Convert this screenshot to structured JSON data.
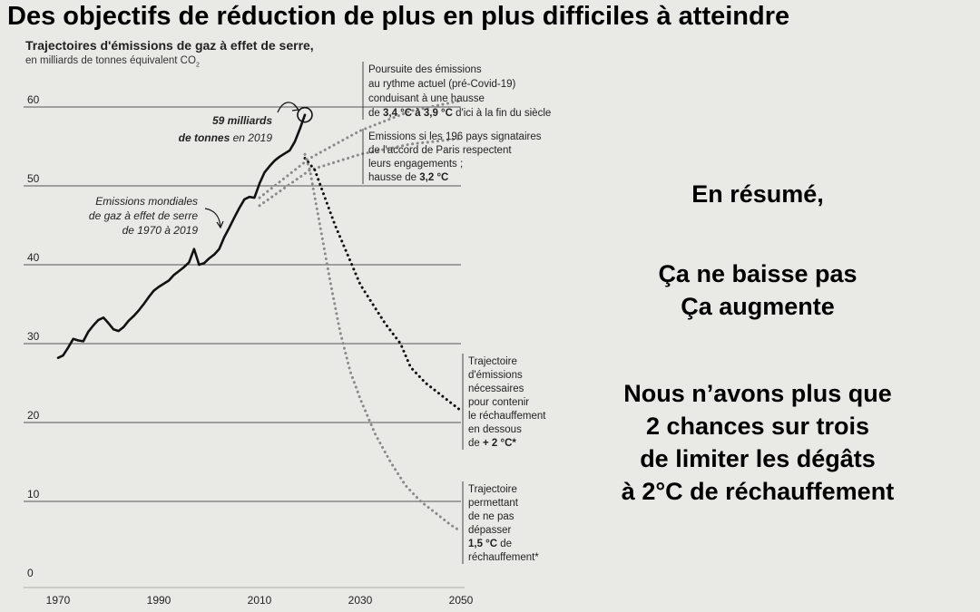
{
  "headline": "Des objectifs de réduction de plus en plus difficiles à atteindre",
  "chart_data": {
    "type": "line",
    "title": "Trajectoires d'émissions de gaz à effet de serre,",
    "subtitle": "en milliards de tonnes équivalent CO",
    "subtitle_sub": "2",
    "xlim": [
      1970,
      2050
    ],
    "ylim": [
      0,
      60
    ],
    "x_ticks": [
      "1970",
      "1990",
      "2010",
      "2030",
      "2050"
    ],
    "y_ticks": [
      "0",
      "10",
      "20",
      "30",
      "40",
      "50",
      "60"
    ],
    "grid": true,
    "series": [
      {
        "key": "historical",
        "style": "solid",
        "color": "#111111",
        "x": [
          1970,
          1971,
          1972,
          1973,
          1974,
          1975,
          1976,
          1977,
          1978,
          1979,
          1980,
          1981,
          1982,
          1983,
          1984,
          1985,
          1986,
          1987,
          1988,
          1989,
          1990,
          1991,
          1992,
          1993,
          1994,
          1995,
          1996,
          1997,
          1998,
          1999,
          2000,
          2001,
          2002,
          2003,
          2004,
          2005,
          2006,
          2007,
          2008,
          2009,
          2010,
          2011,
          2012,
          2013,
          2014,
          2015,
          2016,
          2017,
          2018,
          2019
        ],
        "y": [
          28.2,
          28.5,
          29.5,
          30.6,
          30.4,
          30.3,
          31.5,
          32.3,
          33.0,
          33.3,
          32.6,
          31.8,
          31.6,
          32.1,
          32.9,
          33.5,
          34.2,
          35.0,
          35.9,
          36.7,
          37.2,
          37.6,
          38.0,
          38.7,
          39.2,
          39.7,
          40.3,
          42.0,
          40.0,
          40.2,
          40.8,
          41.3,
          42.0,
          43.5,
          44.7,
          46.0,
          47.2,
          48.3,
          48.6,
          48.5,
          50.3,
          51.7,
          52.5,
          53.2,
          53.7,
          54.1,
          54.5,
          55.6,
          57.2,
          59.0
        ]
      },
      {
        "key": "current-pace",
        "style": "dotted",
        "color": "#8a8a8a",
        "x": [
          2010,
          2020,
          2030,
          2040,
          2050
        ],
        "y": [
          48.5,
          53.5,
          57.0,
          59.5,
          60.8
        ]
      },
      {
        "key": "paris-pledges",
        "style": "dotted",
        "color": "#8a8a8a",
        "x": [
          2010,
          2020,
          2030,
          2040,
          2050
        ],
        "y": [
          47.5,
          52.0,
          54.0,
          55.3,
          56.0
        ]
      },
      {
        "key": "below-2c",
        "style": "dotted",
        "color": "#111111",
        "x": [
          2019,
          2021,
          2023,
          2025,
          2028,
          2030,
          2033,
          2035,
          2038,
          2040,
          2043,
          2045,
          2048,
          2050
        ],
        "y": [
          53.5,
          52.0,
          48.5,
          45.0,
          40.5,
          37.5,
          34.5,
          32.5,
          30.0,
          27.0,
          25.0,
          24.0,
          22.5,
          21.5
        ]
      },
      {
        "key": "1-5c",
        "style": "dotted",
        "color": "#8a8a8a",
        "x": [
          2019,
          2020,
          2022,
          2024,
          2026,
          2028,
          2030,
          2033,
          2036,
          2039,
          2042,
          2045,
          2048,
          2050
        ],
        "y": [
          54.0,
          52.0,
          45.0,
          38.0,
          31.5,
          26.5,
          23.0,
          18.5,
          15.0,
          12.0,
          10.0,
          8.5,
          7.0,
          6.2
        ]
      }
    ],
    "annotations": {
      "point_2019": {
        "x": 2019,
        "y": 59.0,
        "line1": "59 milliards",
        "line2_bold": "de tonnes",
        "line2_rest": " en 2019"
      },
      "historical_label": [
        "Emissions mondiales",
        "de gaz à effet de serre",
        "de 1970 à 2019"
      ],
      "current_pace": {
        "lines": [
          "Poursuite des émissions",
          "au rythme actuel  (pré-Covid-19)",
          "conduisant à une hausse"
        ],
        "last_prefix": "de ",
        "last_bold": "3,4 °C à 3,9 °C",
        "last_rest": " d'ici à la fin du siècle"
      },
      "paris": {
        "lines": [
          "Emissions si les 196 pays signataires",
          "de l'accord de Paris respectent",
          "leurs engagements ;"
        ],
        "last_prefix": "hausse de ",
        "last_bold": "3,2 °C"
      },
      "below_2c": {
        "lines": [
          "Trajectoire",
          "d'émissions",
          "nécessaires",
          "pour contenir",
          "le réchauffement",
          "en dessous"
        ],
        "last_prefix": "de ",
        "last_bold": "+ 2 °C*"
      },
      "limit_1_5c": {
        "lines": [
          "Trajectoire",
          "permettant",
          "de ne pas",
          "dépasser"
        ],
        "bold_line_bold": "1,5 °C",
        "bold_line_rest": " de",
        "last_line": "réchauffement*"
      }
    }
  },
  "summary": {
    "title": "En résumé,",
    "point1_line1": "Ça ne baisse pas",
    "point1_line2": "Ça augmente",
    "point2_line1": "Nous n’avons plus que",
    "point2_line2": "2 chances sur trois",
    "point2_line3": "de limiter les dégâts",
    "point2_line4": "à 2°C de réchauffement"
  }
}
